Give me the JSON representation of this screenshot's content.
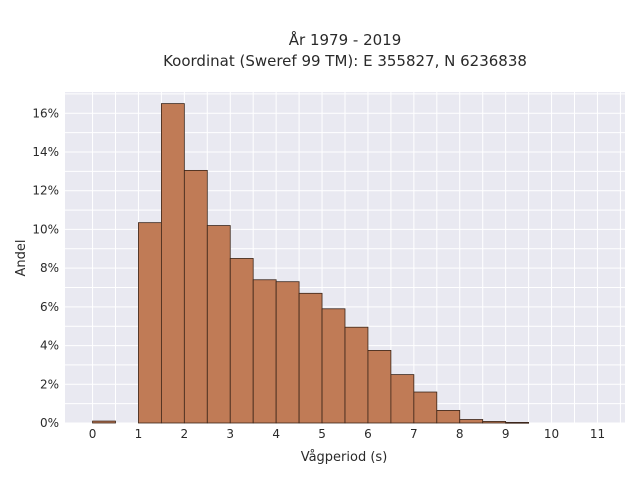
{
  "chart_data": {
    "type": "bar",
    "title": "År 1979 - 2019",
    "subtitle": "Koordinat (Sweref 99 TM): E 355827, N 6236838",
    "xlabel": "Vågperiod (s)",
    "ylabel": "Andel",
    "bin_width": 0.5,
    "bins": [
      {
        "x0": 0.0,
        "x1": 0.5,
        "value": 0.1
      },
      {
        "x0": 1.0,
        "x1": 1.5,
        "value": 10.35
      },
      {
        "x0": 1.5,
        "x1": 2.0,
        "value": 16.5
      },
      {
        "x0": 2.0,
        "x1": 2.5,
        "value": 13.05
      },
      {
        "x0": 2.5,
        "x1": 3.0,
        "value": 10.2
      },
      {
        "x0": 3.0,
        "x1": 3.5,
        "value": 8.5
      },
      {
        "x0": 3.5,
        "x1": 4.0,
        "value": 7.4
      },
      {
        "x0": 4.0,
        "x1": 4.5,
        "value": 7.3
      },
      {
        "x0": 4.5,
        "x1": 5.0,
        "value": 6.7
      },
      {
        "x0": 5.0,
        "x1": 5.5,
        "value": 5.9
      },
      {
        "x0": 5.5,
        "x1": 6.0,
        "value": 4.95
      },
      {
        "x0": 6.0,
        "x1": 6.5,
        "value": 3.75
      },
      {
        "x0": 6.5,
        "x1": 7.0,
        "value": 2.5
      },
      {
        "x0": 7.0,
        "x1": 7.5,
        "value": 1.6
      },
      {
        "x0": 7.5,
        "x1": 8.0,
        "value": 0.65
      },
      {
        "x0": 8.0,
        "x1": 8.5,
        "value": 0.18
      },
      {
        "x0": 8.5,
        "x1": 9.0,
        "value": 0.08
      },
      {
        "x0": 9.0,
        "x1": 9.5,
        "value": 0.03
      }
    ],
    "xlim": [
      -0.6,
      11.6
    ],
    "ylim": [
      0,
      17.1
    ],
    "x_ticks": [
      0,
      1,
      2,
      3,
      4,
      5,
      6,
      7,
      8,
      9,
      10,
      11
    ],
    "y_ticks": [
      0,
      2,
      4,
      6,
      8,
      10,
      12,
      14,
      16
    ],
    "y_tick_labels": [
      "0%",
      "2%",
      "4%",
      "6%",
      "8%",
      "10%",
      "12%",
      "14%",
      "16%"
    ],
    "grid": true,
    "colors": {
      "bar_fill": "#c07b56",
      "bar_stroke": "#3a2418",
      "plot_background": "#e9e9f1",
      "grid": "#ffffff"
    }
  }
}
